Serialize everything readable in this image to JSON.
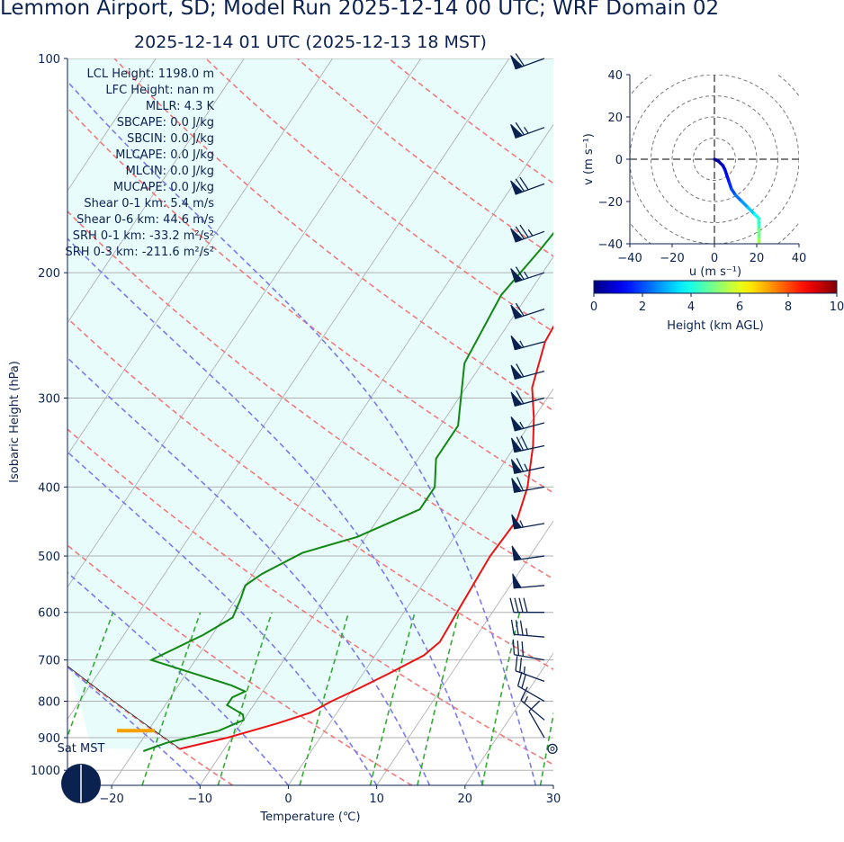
{
  "header": {
    "title": "Lemmon Airport, SD; Model Run 2025-12-14 00 UTC; WRF Domain 02",
    "subtitle": "2025-12-14 01 UTC  (2025-12-13 18 MST)"
  },
  "indices": [
    "LCL Height: 1198.0 m",
    "LFC Height: nan m",
    "MLLR: 4.3 K",
    "SBCAPE: 0.0 J/kg",
    "SBCIN: 0.0 J/kg",
    "MLCAPE: 0.0 J/kg",
    "MLCIN: 0.0 J/kg",
    "MUCAPE: 0.0 J/kg",
    "Shear 0-1 km: 5.4 m/s",
    "Shear 0-6 km: 44.6 m/s",
    "SRH 0-1 km: -33.2 m²/s²",
    "SRH 0-3 km: -211.6 m²/s²"
  ],
  "sun_label": "Sat MST",
  "colors": {
    "temperature": "#ee1111",
    "dewpoint": "#118811",
    "dry_adiabat": "#f07a7a",
    "moist_adiabat": "#7a7af0",
    "mixing_ratio": "#33aa33",
    "isotherm": "#aaaaaa",
    "cape_shade": "#e9fcfc",
    "parcel_marker": "#f5a000",
    "axis": "#0b2250"
  },
  "chart_data": [
    {
      "type": "skew-t",
      "xlabel": "Temperature (℃)",
      "ylabel": "Isobaric Height (hPa)",
      "xlim": [
        -25,
        30
      ],
      "ylim": [
        1050,
        100
      ],
      "y_scale": "log",
      "xticks": [
        -20,
        -10,
        0,
        10,
        20,
        30
      ],
      "yticks": [
        100,
        200,
        300,
        400,
        500,
        600,
        700,
        800,
        900,
        1000
      ],
      "series": [
        {
          "key": "temperature",
          "p": [
            933,
            900,
            860,
            830,
            800,
            770,
            730,
            690,
            660,
            600,
            500,
            445,
            400,
            350,
            320,
            290,
            250,
            220,
            205,
            180,
            150,
            125,
            100
          ],
          "t": [
            -15,
            -10.5,
            -6,
            -3,
            -1.5,
            0.5,
            3,
            5.5,
            6.3,
            6,
            5.5,
            5.8,
            4.5,
            2,
            0,
            -2.5,
            -4.5,
            -5,
            -3,
            0,
            5,
            10,
            14.5
          ]
        },
        {
          "key": "dewpoint",
          "p": [
            940,
            915,
            880,
            850,
            835,
            810,
            790,
            775,
            760,
            700,
            645,
            610,
            575,
            550,
            530,
            495,
            470,
            430,
            400,
            365,
            328,
            268,
            215,
            185,
            150,
            125,
            100
          ],
          "t": [
            -19,
            -17,
            -12,
            -10,
            -10.5,
            -13,
            -13,
            -12,
            -14,
            -25,
            -21,
            -19,
            -19.5,
            -20,
            -19,
            -16,
            -11,
            -6,
            -6,
            -8,
            -8,
            -12,
            -13,
            -12,
            -11,
            -8,
            -3
          ]
        }
      ],
      "lcl_pressure": 880,
      "wind_barbs": [
        {
          "p": 100,
          "dir": 250,
          "spd": 60
        },
        {
          "p": 125,
          "dir": 250,
          "spd": 65
        },
        {
          "p": 150,
          "dir": 250,
          "spd": 70
        },
        {
          "p": 175,
          "dir": 250,
          "spd": 75
        },
        {
          "p": 200,
          "dir": 252,
          "spd": 65
        },
        {
          "p": 225,
          "dir": 252,
          "spd": 60
        },
        {
          "p": 250,
          "dir": 255,
          "spd": 55
        },
        {
          "p": 275,
          "dir": 255,
          "spd": 60
        },
        {
          "p": 300,
          "dir": 255,
          "spd": 60
        },
        {
          "p": 325,
          "dir": 255,
          "spd": 55
        },
        {
          "p": 350,
          "dir": 258,
          "spd": 70
        },
        {
          "p": 375,
          "dir": 258,
          "spd": 65
        },
        {
          "p": 400,
          "dir": 260,
          "spd": 60
        },
        {
          "p": 450,
          "dir": 260,
          "spd": 55
        },
        {
          "p": 500,
          "dir": 262,
          "spd": 50
        },
        {
          "p": 550,
          "dir": 265,
          "spd": 50
        },
        {
          "p": 600,
          "dir": 270,
          "spd": 40
        },
        {
          "p": 650,
          "dir": 275,
          "spd": 35
        },
        {
          "p": 700,
          "dir": 280,
          "spd": 30
        },
        {
          "p": 750,
          "dir": 290,
          "spd": 25
        },
        {
          "p": 800,
          "dir": 300,
          "spd": 20
        },
        {
          "p": 850,
          "dir": 310,
          "spd": 15
        },
        {
          "p": 900,
          "dir": 330,
          "spd": 10
        },
        {
          "p": 933,
          "dir": 0,
          "spd": 0
        }
      ]
    },
    {
      "type": "hodograph",
      "xlabel": "u (m s⁻¹)",
      "ylabel": "v (m s⁻¹)",
      "xlim": [
        -40,
        40
      ],
      "ylim": [
        -40,
        40
      ],
      "xticks": [
        -40,
        -20,
        0,
        20,
        40
      ],
      "yticks": [
        -40,
        -20,
        0,
        20,
        40
      ],
      "rings": [
        10,
        20,
        30,
        40
      ],
      "points": [
        {
          "u": 0,
          "v": 0,
          "z": 0
        },
        {
          "u": 2,
          "v": -1,
          "z": 0.3
        },
        {
          "u": 4,
          "v": -3,
          "z": 0.6
        },
        {
          "u": 5,
          "v": -5,
          "z": 0.9
        },
        {
          "u": 6,
          "v": -8,
          "z": 1.2
        },
        {
          "u": 7,
          "v": -11,
          "z": 1.5
        },
        {
          "u": 8,
          "v": -14,
          "z": 1.8
        },
        {
          "u": 10,
          "v": -17,
          "z": 2.2
        },
        {
          "u": 13,
          "v": -20,
          "z": 2.6
        },
        {
          "u": 16,
          "v": -23,
          "z": 3.0
        },
        {
          "u": 19,
          "v": -26,
          "z": 3.5
        },
        {
          "u": 21,
          "v": -28,
          "z": 4.0
        },
        {
          "u": 21,
          "v": -33,
          "z": 4.6
        },
        {
          "u": 21,
          "v": -38,
          "z": 5.2
        },
        {
          "u": 21,
          "v": -40,
          "z": 5.5
        }
      ],
      "colorbar": {
        "label": "Height (km AGL)",
        "ticks": [
          0,
          2,
          4,
          6,
          8,
          10
        ],
        "range": [
          0,
          10
        ]
      }
    }
  ]
}
